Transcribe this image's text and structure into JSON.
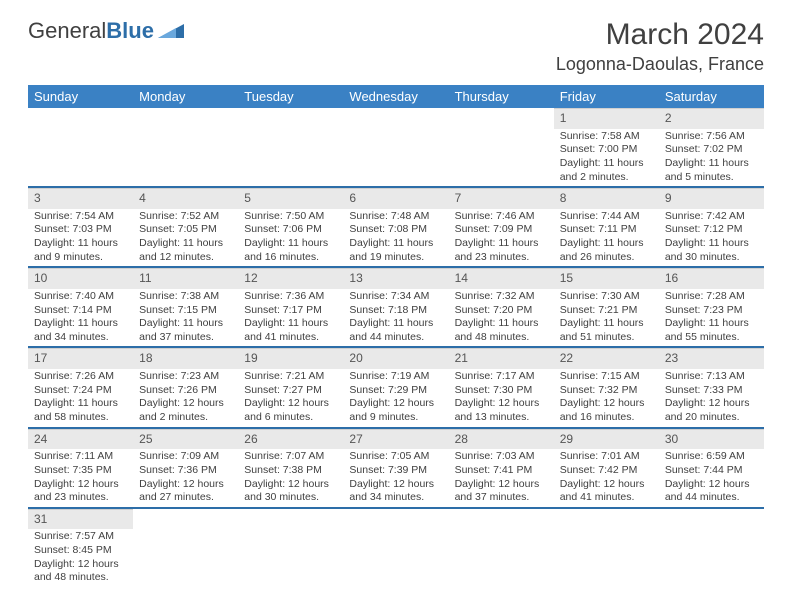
{
  "logo": {
    "text1": "General",
    "text2": "Blue"
  },
  "title": "March 2024",
  "location": "Logonna-Daoulas, France",
  "colors": {
    "header_bg": "#3a81c4",
    "header_text": "#ffffff",
    "daynum_bg": "#e9e9e9",
    "text": "#404040",
    "accent": "#2d6ea8"
  },
  "weekdays": [
    "Sunday",
    "Monday",
    "Tuesday",
    "Wednesday",
    "Thursday",
    "Friday",
    "Saturday"
  ],
  "weeks": [
    [
      null,
      null,
      null,
      null,
      null,
      {
        "d": "1",
        "sr": "7:58 AM",
        "ss": "7:00 PM",
        "dl": "11 hours and 2 minutes."
      },
      {
        "d": "2",
        "sr": "7:56 AM",
        "ss": "7:02 PM",
        "dl": "11 hours and 5 minutes."
      }
    ],
    [
      {
        "d": "3",
        "sr": "7:54 AM",
        "ss": "7:03 PM",
        "dl": "11 hours and 9 minutes."
      },
      {
        "d": "4",
        "sr": "7:52 AM",
        "ss": "7:05 PM",
        "dl": "11 hours and 12 minutes."
      },
      {
        "d": "5",
        "sr": "7:50 AM",
        "ss": "7:06 PM",
        "dl": "11 hours and 16 minutes."
      },
      {
        "d": "6",
        "sr": "7:48 AM",
        "ss": "7:08 PM",
        "dl": "11 hours and 19 minutes."
      },
      {
        "d": "7",
        "sr": "7:46 AM",
        "ss": "7:09 PM",
        "dl": "11 hours and 23 minutes."
      },
      {
        "d": "8",
        "sr": "7:44 AM",
        "ss": "7:11 PM",
        "dl": "11 hours and 26 minutes."
      },
      {
        "d": "9",
        "sr": "7:42 AM",
        "ss": "7:12 PM",
        "dl": "11 hours and 30 minutes."
      }
    ],
    [
      {
        "d": "10",
        "sr": "7:40 AM",
        "ss": "7:14 PM",
        "dl": "11 hours and 34 minutes."
      },
      {
        "d": "11",
        "sr": "7:38 AM",
        "ss": "7:15 PM",
        "dl": "11 hours and 37 minutes."
      },
      {
        "d": "12",
        "sr": "7:36 AM",
        "ss": "7:17 PM",
        "dl": "11 hours and 41 minutes."
      },
      {
        "d": "13",
        "sr": "7:34 AM",
        "ss": "7:18 PM",
        "dl": "11 hours and 44 minutes."
      },
      {
        "d": "14",
        "sr": "7:32 AM",
        "ss": "7:20 PM",
        "dl": "11 hours and 48 minutes."
      },
      {
        "d": "15",
        "sr": "7:30 AM",
        "ss": "7:21 PM",
        "dl": "11 hours and 51 minutes."
      },
      {
        "d": "16",
        "sr": "7:28 AM",
        "ss": "7:23 PM",
        "dl": "11 hours and 55 minutes."
      }
    ],
    [
      {
        "d": "17",
        "sr": "7:26 AM",
        "ss": "7:24 PM",
        "dl": "11 hours and 58 minutes."
      },
      {
        "d": "18",
        "sr": "7:23 AM",
        "ss": "7:26 PM",
        "dl": "12 hours and 2 minutes."
      },
      {
        "d": "19",
        "sr": "7:21 AM",
        "ss": "7:27 PM",
        "dl": "12 hours and 6 minutes."
      },
      {
        "d": "20",
        "sr": "7:19 AM",
        "ss": "7:29 PM",
        "dl": "12 hours and 9 minutes."
      },
      {
        "d": "21",
        "sr": "7:17 AM",
        "ss": "7:30 PM",
        "dl": "12 hours and 13 minutes."
      },
      {
        "d": "22",
        "sr": "7:15 AM",
        "ss": "7:32 PM",
        "dl": "12 hours and 16 minutes."
      },
      {
        "d": "23",
        "sr": "7:13 AM",
        "ss": "7:33 PM",
        "dl": "12 hours and 20 minutes."
      }
    ],
    [
      {
        "d": "24",
        "sr": "7:11 AM",
        "ss": "7:35 PM",
        "dl": "12 hours and 23 minutes."
      },
      {
        "d": "25",
        "sr": "7:09 AM",
        "ss": "7:36 PM",
        "dl": "12 hours and 27 minutes."
      },
      {
        "d": "26",
        "sr": "7:07 AM",
        "ss": "7:38 PM",
        "dl": "12 hours and 30 minutes."
      },
      {
        "d": "27",
        "sr": "7:05 AM",
        "ss": "7:39 PM",
        "dl": "12 hours and 34 minutes."
      },
      {
        "d": "28",
        "sr": "7:03 AM",
        "ss": "7:41 PM",
        "dl": "12 hours and 37 minutes."
      },
      {
        "d": "29",
        "sr": "7:01 AM",
        "ss": "7:42 PM",
        "dl": "12 hours and 41 minutes."
      },
      {
        "d": "30",
        "sr": "6:59 AM",
        "ss": "7:44 PM",
        "dl": "12 hours and 44 minutes."
      }
    ],
    [
      {
        "d": "31",
        "sr": "7:57 AM",
        "ss": "8:45 PM",
        "dl": "12 hours and 48 minutes."
      },
      null,
      null,
      null,
      null,
      null,
      null
    ]
  ],
  "labels": {
    "sunrise": "Sunrise: ",
    "sunset": "Sunset: ",
    "daylight": "Daylight: "
  }
}
